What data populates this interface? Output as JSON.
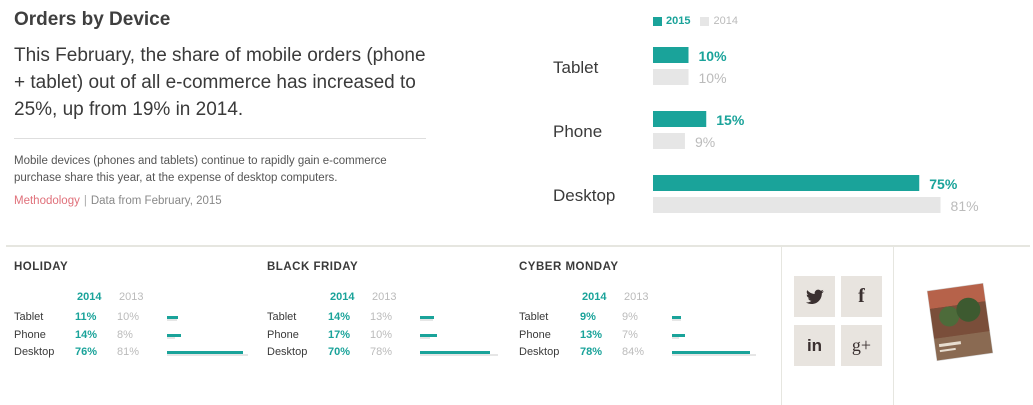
{
  "title": "Orders by Device",
  "lead": "This February, the share of mobile orders (phone + tablet) out of all e-commerce has increased to 25%, up from 19% in 2014.",
  "description": "Mobile devices (phones and tablets) continue to rapidly gain e-commerce purchase share this year, at the expense of desktop computers.",
  "meta": {
    "link": "Methodology",
    "separator": "|",
    "source": "Data from February, 2015"
  },
  "colors": {
    "current": "#1aa39a",
    "previous": "#e6e6e6",
    "previous_text": "#bbbbbb"
  },
  "chart_data": [
    {
      "type": "bar",
      "orientation": "horizontal",
      "title": "",
      "categories": [
        "Tablet",
        "Phone",
        "Desktop"
      ],
      "series": [
        {
          "name": "2015",
          "values": [
            10,
            15,
            75
          ],
          "labels": [
            "10%",
            "15%",
            "75%"
          ]
        },
        {
          "name": "2014",
          "values": [
            10,
            9,
            81
          ],
          "labels": [
            "10%",
            "9%",
            "81%"
          ]
        }
      ],
      "legend": "top",
      "grid": false
    },
    {
      "type": "bar",
      "orientation": "horizontal",
      "title": "HOLIDAY",
      "years": [
        "2014",
        "2013"
      ],
      "categories": [
        "Tablet",
        "Phone",
        "Desktop"
      ],
      "series": [
        {
          "name": "2014",
          "values": [
            11,
            14,
            76
          ],
          "labels": [
            "11%",
            "14%",
            "76%"
          ]
        },
        {
          "name": "2013",
          "values": [
            10,
            8,
            81
          ],
          "labels": [
            "10%",
            "8%",
            "81%"
          ]
        }
      ]
    },
    {
      "type": "bar",
      "orientation": "horizontal",
      "title": "BLACK FRIDAY",
      "years": [
        "2014",
        "2013"
      ],
      "categories": [
        "Tablet",
        "Phone",
        "Desktop"
      ],
      "series": [
        {
          "name": "2014",
          "values": [
            14,
            17,
            70
          ],
          "labels": [
            "14%",
            "17%",
            "70%"
          ]
        },
        {
          "name": "2013",
          "values": [
            13,
            10,
            78
          ],
          "labels": [
            "13%",
            "10%",
            "78%"
          ]
        }
      ]
    },
    {
      "type": "bar",
      "orientation": "horizontal",
      "title": "CYBER MONDAY",
      "years": [
        "2014",
        "2013"
      ],
      "categories": [
        "Tablet",
        "Phone",
        "Desktop"
      ],
      "series": [
        {
          "name": "2014",
          "values": [
            9,
            13,
            78
          ],
          "labels": [
            "9%",
            "13%",
            "78%"
          ]
        },
        {
          "name": "2013",
          "values": [
            9,
            7,
            84
          ],
          "labels": [
            "9%",
            "7%",
            "84%"
          ]
        }
      ]
    }
  ],
  "social": [
    {
      "name": "twitter-icon",
      "glyph": ""
    },
    {
      "name": "facebook-icon",
      "glyph": "f"
    },
    {
      "name": "linkedin-icon",
      "glyph": "in"
    },
    {
      "name": "google-plus-icon",
      "glyph": "g+"
    }
  ]
}
